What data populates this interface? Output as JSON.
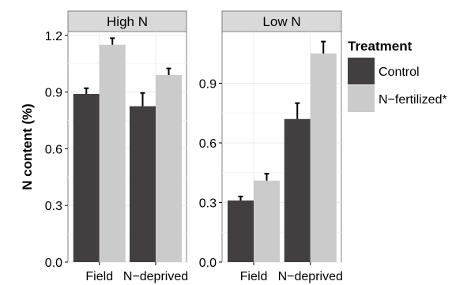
{
  "chart_data": {
    "type": "bar",
    "ylabel": "N content (%)",
    "categories": [
      "Field",
      "N−deprived"
    ],
    "legend": {
      "title": "Treatment",
      "position": "right",
      "entries": [
        "Control",
        "N−fertilized*"
      ]
    },
    "colors": {
      "Control": "#433e40",
      "N−fertilized*": "#cbcbcb",
      "strip": "#d9d9d9",
      "grid": "#ebebeb"
    },
    "grid": true,
    "panels": [
      {
        "title": "High N",
        "ylim": [
          0,
          1.22
        ],
        "yticks": [
          "0.0",
          "0.3",
          "0.6",
          "0.9",
          "1.2"
        ],
        "ytick_values": [
          0,
          0.3,
          0.6,
          0.9,
          1.2
        ],
        "series": [
          {
            "name": "Control",
            "values": [
              0.89,
              0.825
            ],
            "errors": [
              0.03,
              0.07
            ]
          },
          {
            "name": "N−fertilized*",
            "values": [
              1.15,
              0.99
            ],
            "errors": [
              0.035,
              0.035
            ]
          }
        ]
      },
      {
        "title": "Low N",
        "ylim": [
          0,
          1.16
        ],
        "yticks": [
          "0.0",
          "0.3",
          "0.6",
          "0.9"
        ],
        "ytick_values": [
          0,
          0.3,
          0.6,
          0.9
        ],
        "series": [
          {
            "name": "Control",
            "values": [
              0.31,
              0.72
            ],
            "errors": [
              0.02,
              0.08
            ]
          },
          {
            "name": "N−fertilized*",
            "values": [
              0.41,
              1.05
            ],
            "errors": [
              0.035,
              0.06
            ]
          }
        ]
      }
    ]
  }
}
